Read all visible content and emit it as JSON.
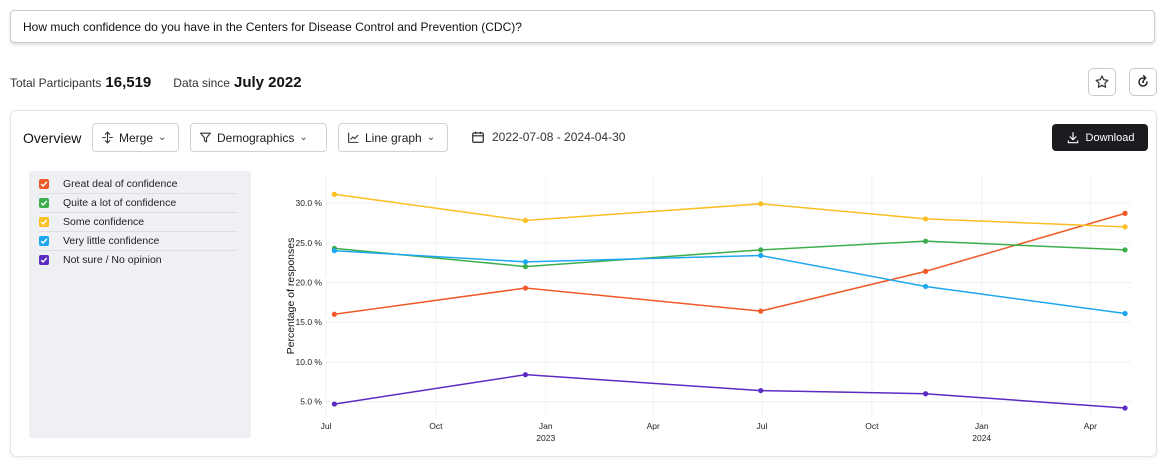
{
  "question": "How much confidence do you have in the Centers for Disease Control and Prevention (CDC)?",
  "stats": {
    "participants_label": "Total Participants",
    "participants_value": "16,519",
    "since_label": "Data since",
    "since_value": "July 2022"
  },
  "toolbar": {
    "overview": "Overview",
    "merge": "Merge",
    "demographics": "Demographics",
    "graph_type": "Line graph",
    "date_range": "2022-07-08 - 2024-04-30",
    "download": "Download"
  },
  "icons": {
    "favorite": "star-icon",
    "refresh": "refresh-icon",
    "merge": "merge-icon",
    "filter": "filter-icon",
    "graph": "line-chart-icon",
    "calendar": "calendar-icon",
    "download": "download-icon"
  },
  "legend": [
    {
      "label": "Great deal of confidence",
      "color": "#f05a28",
      "checked": true
    },
    {
      "label": "Quite a lot of confidence",
      "color": "#3bae4b",
      "checked": true
    },
    {
      "label": "Some confidence",
      "color": "#fbbf24",
      "checked": true
    },
    {
      "label": "Very little confidence",
      "color": "#1ea7f0",
      "checked": true
    },
    {
      "label": "Not sure / No opinion",
      "color": "#5b2bc2",
      "checked": true
    }
  ],
  "chart_data": {
    "type": "line",
    "ylabel": "Percentage of responses",
    "ylim": [
      3.2,
      33.4
    ],
    "yticks": [
      5,
      10,
      15,
      20,
      25,
      30
    ],
    "ytick_labels": [
      "5.0 %",
      "10.0 %",
      "15.0 %",
      "20.0 %",
      "25.0 %",
      "30.0 %"
    ],
    "xlim": [
      "2022-07-01",
      "2024-05-05"
    ],
    "xticks": [
      {
        "date": "2022-07-01",
        "label": "Jul",
        "sub": ""
      },
      {
        "date": "2022-10-01",
        "label": "Oct",
        "sub": ""
      },
      {
        "date": "2023-01-01",
        "label": "Jan",
        "sub": "2023"
      },
      {
        "date": "2023-04-01",
        "label": "Apr",
        "sub": ""
      },
      {
        "date": "2023-07-01",
        "label": "Jul",
        "sub": ""
      },
      {
        "date": "2023-10-01",
        "label": "Oct",
        "sub": ""
      },
      {
        "date": "2024-01-01",
        "label": "Jan",
        "sub": "2024"
      },
      {
        "date": "2024-04-01",
        "label": "Apr",
        "sub": ""
      }
    ],
    "grid": true,
    "x": [
      "2022-07-08",
      "2022-12-15",
      "2023-06-30",
      "2023-11-15",
      "2024-04-30"
    ],
    "series": [
      {
        "name": "Great deal of confidence",
        "color": "#f05a28",
        "values": [
          16.0,
          19.3,
          16.4,
          21.4,
          28.7
        ]
      },
      {
        "name": "Quite a lot of confidence",
        "color": "#3bae4b",
        "values": [
          24.3,
          22.0,
          24.1,
          25.2,
          24.1
        ]
      },
      {
        "name": "Some confidence",
        "color": "#fbbf24",
        "values": [
          31.1,
          27.8,
          29.9,
          28.0,
          27.0
        ]
      },
      {
        "name": "Very little confidence",
        "color": "#1ea7f0",
        "values": [
          24.0,
          22.6,
          23.4,
          19.5,
          16.1
        ]
      },
      {
        "name": "Not sure / No opinion",
        "color": "#5b2bc2",
        "values": [
          4.7,
          8.4,
          6.4,
          6.0,
          4.2
        ]
      }
    ]
  }
}
